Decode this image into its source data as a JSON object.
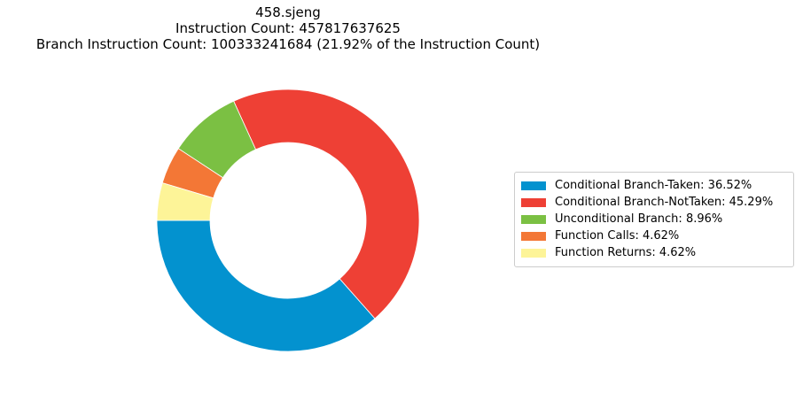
{
  "chart_data": {
    "type": "pie",
    "style": "donut",
    "title_lines": [
      "458.sjeng",
      "Instruction Count: 457817637625",
      "Branch Instruction Count: 100333241684 (21.92% of the Instruction Count)"
    ],
    "slices": [
      {
        "label": "Conditional Branch-Taken",
        "value": 36.52,
        "legend": "Conditional Branch-Taken: 36.52%",
        "color": "#0392cf"
      },
      {
        "label": "Conditional Branch-NotTaken",
        "value": 45.29,
        "legend": "Conditional Branch-NotTaken: 45.29%",
        "color": "#ee4035"
      },
      {
        "label": "Unconditional Branch",
        "value": 8.96,
        "legend": "Unconditional Branch: 8.96%",
        "color": "#7bc043"
      },
      {
        "label": "Function Calls",
        "value": 4.62,
        "legend": "Function Calls: 4.62%",
        "color": "#f37736"
      },
      {
        "label": "Function Returns",
        "value": 4.62,
        "legend": "Function Returns: 4.62%",
        "color": "#fdf498"
      }
    ],
    "start_angle_deg": 180,
    "direction": "counterclockwise",
    "legend_position": "right"
  }
}
